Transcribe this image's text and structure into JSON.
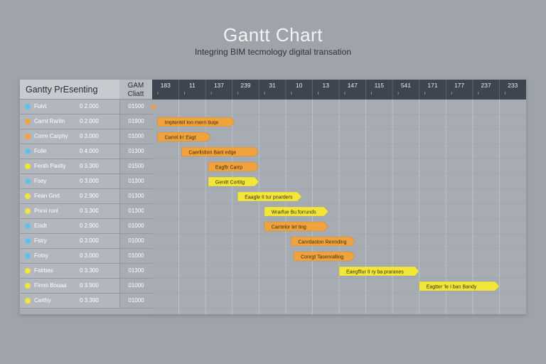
{
  "title": "Gantt Chart",
  "subtitle": "Integring BIM tecmology digital transation",
  "table": {
    "left_header": "Gantty PrEsenting",
    "plan_header_line1": "GAM",
    "plan_header_line2": "Cliatt"
  },
  "colors": {
    "background": "#9fa4ab",
    "header_dark": "#3d4550",
    "bar_orange": "#f0a23c",
    "bar_yellow": "#f2e63a",
    "dot_blue": "#5fc1e8",
    "dot_orange": "#f0a23c",
    "dot_yellow": "#f2e63a"
  },
  "chart_data": {
    "type": "bar",
    "orientation": "gantt",
    "title": "Gantt Chart",
    "subtitle": "Integring BIM tecmology digital transation",
    "timeline_labels": [
      "183",
      "11",
      "137",
      "239",
      "31",
      "10",
      "13",
      "147",
      "115",
      "541",
      "171",
      "177",
      "237",
      "233"
    ],
    "xlim": [
      0,
      14
    ],
    "tasks": [
      {
        "name": "Fuivt",
        "duration": "0 2.000",
        "plan": "01500",
        "dot": "blue",
        "start": 0.0,
        "end": 0.2,
        "color": "orange",
        "label": ""
      },
      {
        "name": "Carnt Raritn",
        "duration": "0 2.000",
        "plan": "01900",
        "dot": "orange",
        "start": 0.2,
        "end": 3.1,
        "color": "orange",
        "label": "Imptentel Ion rnern tiuqe"
      },
      {
        "name": "Corm Carphy",
        "duration": "0 3.000",
        "plan": "01000",
        "dot": "orange",
        "start": 0.2,
        "end": 2.2,
        "color": "orange",
        "label": "Carrel ln' Eagt"
      },
      {
        "name": "Folle",
        "duration": "0 4.000",
        "plan": "01300",
        "dot": "blue",
        "start": 1.1,
        "end": 4.0,
        "color": "orange",
        "label": "Caerlistion Bant edge"
      },
      {
        "name": "Fenth Paslty",
        "duration": "0 3.300",
        "plan": "01500",
        "dot": "yellow",
        "start": 2.1,
        "end": 4.0,
        "color": "orange",
        "label": "Eagftr Carrp"
      },
      {
        "name": "Fsey",
        "duration": "0 3.000",
        "plan": "01300",
        "dot": "blue",
        "start": 2.1,
        "end": 4.0,
        "color": "yellow",
        "label": "Genitt Cortitg"
      },
      {
        "name": "Fean Gnrt",
        "duration": "0 2.900",
        "plan": "01300",
        "dot": "yellow",
        "start": 3.2,
        "end": 5.6,
        "color": "yellow",
        "label": "Eaagle II tur pnarders"
      },
      {
        "name": "Pnrsi ronl",
        "duration": "0 3.300",
        "plan": "01300",
        "dot": "yellow",
        "start": 4.2,
        "end": 6.6,
        "color": "yellow",
        "label": "Wrarfue Bu forrunds"
      },
      {
        "name": "Eisdt",
        "duration": "0 2.900",
        "plan": "01000",
        "dot": "blue",
        "start": 4.2,
        "end": 6.6,
        "color": "orange",
        "label": "Cantelor let ting"
      },
      {
        "name": "Fstry",
        "duration": "0 3.000",
        "plan": "01000",
        "dot": "blue",
        "start": 5.2,
        "end": 7.6,
        "color": "orange",
        "label": "Canrdaston Rennding"
      },
      {
        "name": "Fotny",
        "duration": "0 3.000",
        "plan": "01000",
        "dot": "blue",
        "start": 5.3,
        "end": 7.6,
        "color": "orange",
        "label": "Conrgt Tasenralling"
      },
      {
        "name": "Falrbes",
        "duration": "0 3.300",
        "plan": "01300",
        "dot": "yellow",
        "start": 7.0,
        "end": 10.0,
        "color": "yellow",
        "label": "Eaegffiur II ry ba praranes"
      },
      {
        "name": "Fimm Bouaa",
        "duration": "0 3.900",
        "plan": "01000",
        "dot": "yellow",
        "start": 10.0,
        "end": 13.0,
        "color": "yellow",
        "label": "Eagtter 'le I ban Bandy"
      },
      {
        "name": "Certhy",
        "duration": "0 3.390",
        "plan": "01000",
        "dot": "yellow",
        "start": 0,
        "end": 0,
        "color": "none",
        "label": ""
      }
    ]
  }
}
